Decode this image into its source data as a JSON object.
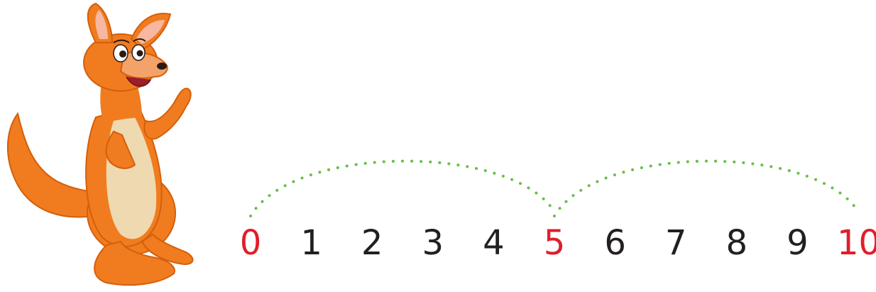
{
  "number_line": {
    "numbers": [
      {
        "label": "0",
        "color": "#e01e2b"
      },
      {
        "label": "1",
        "color": "#231f20"
      },
      {
        "label": "2",
        "color": "#231f20"
      },
      {
        "label": "3",
        "color": "#231f20"
      },
      {
        "label": "4",
        "color": "#231f20"
      },
      {
        "label": "5",
        "color": "#e01e2b"
      },
      {
        "label": "6",
        "color": "#231f20"
      },
      {
        "label": "7",
        "color": "#231f20"
      },
      {
        "label": "8",
        "color": "#231f20"
      },
      {
        "label": "9",
        "color": "#231f20"
      },
      {
        "label": "10",
        "color": "#e01e2b"
      }
    ],
    "jumps": [
      {
        "from": 0,
        "to": 5
      },
      {
        "from": 5,
        "to": 10
      }
    ],
    "jump_color": "#6abf45"
  },
  "kangaroo": {
    "icon": "kangaroo-illustration",
    "fur_color": "#f07c1f",
    "belly_color": "#efd9b0"
  }
}
